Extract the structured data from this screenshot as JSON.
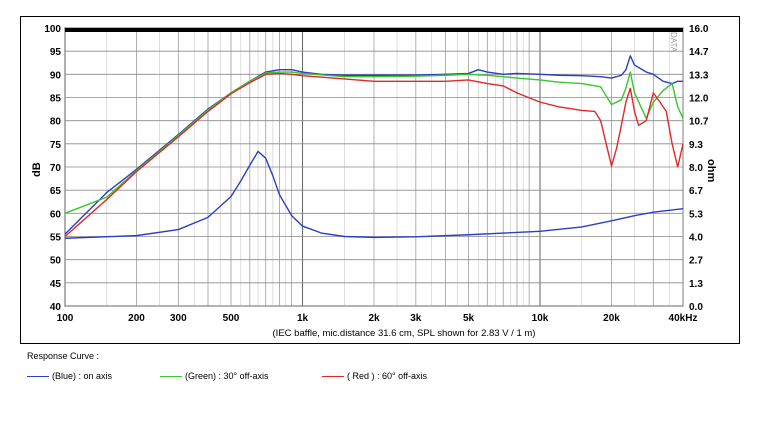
{
  "chart_data": {
    "type": "line",
    "title": "",
    "xlabel": "(IEC baffle, mic.distance 31.6 cm, SPL shown for 2.83 V / 1 m)",
    "ylabel": "dB",
    "y2label": "ohm",
    "x_scale": "log",
    "xlim": [
      100,
      40000
    ],
    "ylim": [
      40,
      100
    ],
    "y2lim": [
      0.0,
      16.0
    ],
    "grid": true,
    "x_ticks": [
      {
        "value": 100,
        "label": "100"
      },
      {
        "value": 200,
        "label": "200"
      },
      {
        "value": 300,
        "label": "300"
      },
      {
        "value": 500,
        "label": "500"
      },
      {
        "value": 1000,
        "label": "1k"
      },
      {
        "value": 2000,
        "label": "2k"
      },
      {
        "value": 3000,
        "label": "3k"
      },
      {
        "value": 5000,
        "label": "5k"
      },
      {
        "value": 10000,
        "label": "10k"
      },
      {
        "value": 20000,
        "label": "20k"
      },
      {
        "value": 40000,
        "label": "40kHz"
      }
    ],
    "y_ticks": [
      "100",
      "95",
      "90",
      "85",
      "80",
      "75",
      "70",
      "65",
      "60",
      "55",
      "50",
      "45",
      "40"
    ],
    "y2_ticks": [
      "16.0",
      "14.7",
      "13.3",
      "12.0",
      "10.7",
      "9.3",
      "8.0",
      "6.7",
      "5.3",
      "4.0",
      "2.7",
      "1.3",
      "0.0"
    ],
    "watermark": "DATA",
    "legend_title": "Response Curve :",
    "legend_position": "bottom",
    "series": [
      {
        "name": "(Blue)  : on axis",
        "color": "#2b3fc4",
        "x": [
          100,
          150,
          200,
          300,
          400,
          500,
          600,
          700,
          800,
          900,
          1000,
          1200,
          1500,
          2000,
          3000,
          4000,
          5000,
          5500,
          6000,
          7000,
          8000,
          10000,
          12000,
          15000,
          18000,
          20000,
          22000,
          23000,
          24000,
          25000,
          28000,
          30000,
          33000,
          36000,
          38000,
          40000
        ],
        "y": [
          55.5,
          64.5,
          69.5,
          77,
          82.5,
          86,
          88.5,
          90.5,
          91,
          91,
          90.5,
          90,
          89.8,
          89.8,
          89.8,
          90,
          90.2,
          91,
          90.5,
          90,
          90.2,
          90,
          89.8,
          89.7,
          89.5,
          89.2,
          89.8,
          91,
          94,
          92,
          90.5,
          90,
          88.5,
          88,
          88.5,
          88.5
        ]
      },
      {
        "name": "(Green) : 30° off-axis",
        "color": "#39c531",
        "x": [
          100,
          150,
          200,
          300,
          400,
          500,
          600,
          700,
          800,
          900,
          1000,
          1500,
          2000,
          3000,
          4000,
          5000,
          6000,
          7000,
          8000,
          10000,
          12000,
          15000,
          18000,
          20000,
          22000,
          23000,
          24000,
          25000,
          28000,
          30000,
          33000,
          36000,
          38000,
          40000
        ],
        "y": [
          60,
          63.5,
          69.2,
          76.8,
          82.3,
          86,
          88.5,
          90.3,
          90.5,
          90.5,
          90.2,
          89.5,
          89.5,
          89.6,
          89.8,
          90,
          89.8,
          89.5,
          89.2,
          88.8,
          88.3,
          88,
          87.3,
          83.5,
          84.5,
          87,
          90.5,
          86,
          80.5,
          84,
          86.5,
          88,
          83,
          80.5
        ]
      },
      {
        "name": "( Red ) : 60° off-axis",
        "color": "#e12828",
        "x": [
          100,
          150,
          200,
          300,
          400,
          500,
          600,
          700,
          800,
          900,
          1000,
          1500,
          2000,
          3000,
          4000,
          5000,
          6000,
          7000,
          8000,
          10000,
          12000,
          15000,
          17000,
          18000,
          19000,
          20000,
          21000,
          22000,
          23000,
          24000,
          25000,
          26000,
          28000,
          30000,
          32000,
          34000,
          36000,
          38000,
          40000
        ],
        "y": [
          55,
          63,
          69,
          76.5,
          82,
          85.8,
          88.2,
          90,
          90.2,
          90,
          89.7,
          89,
          88.5,
          88.5,
          88.5,
          88.8,
          88,
          87.5,
          86,
          84,
          83,
          82.2,
          82,
          80,
          75,
          70.2,
          74,
          79,
          84,
          87,
          82,
          79,
          80,
          86,
          84,
          82,
          75,
          70,
          75
        ]
      },
      {
        "name": "",
        "color": "#2b3fc4",
        "axis": "ohm",
        "x": [
          100,
          200,
          300,
          400,
          500,
          550,
          600,
          650,
          700,
          750,
          800,
          900,
          1000,
          1200,
          1500,
          2000,
          3000,
          5000,
          10000,
          15000,
          20000,
          25000,
          30000,
          40000
        ],
        "y": [
          3.9,
          4.05,
          4.4,
          5.1,
          6.3,
          7.2,
          8.1,
          8.9,
          8.5,
          7.5,
          6.4,
          5.2,
          4.6,
          4.2,
          4.0,
          3.95,
          3.98,
          4.1,
          4.3,
          4.55,
          4.9,
          5.2,
          5.4,
          5.6
        ]
      }
    ]
  }
}
